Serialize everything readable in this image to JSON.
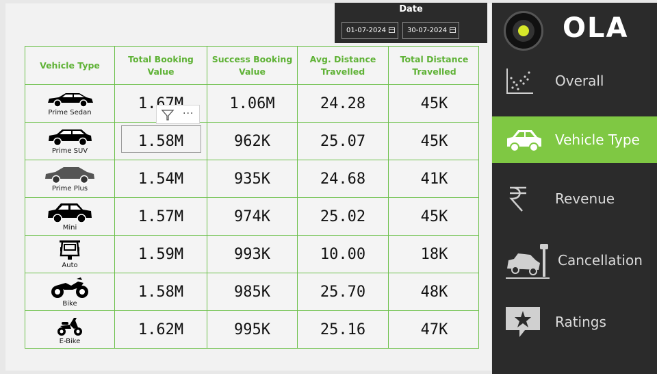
{
  "date_filter": {
    "title": "Date",
    "start": "01-07-2024",
    "end": "30-07-2024"
  },
  "table": {
    "headers": [
      "Vehicle Type",
      "Total Booking Value",
      "Success Booking Value",
      "Avg. Distance Travelled",
      "Total Distance Travelled"
    ],
    "rows": [
      {
        "vehicle": "Prime Sedan",
        "icon": "sedan-icon",
        "total_booking": "1.67M",
        "success_booking": "1.06M",
        "avg_distance": "24.28",
        "total_distance": "45K"
      },
      {
        "vehicle": "Prime SUV",
        "icon": "suv-icon",
        "total_booking": "1.58M",
        "success_booking": "962K",
        "avg_distance": "25.07",
        "total_distance": "45K"
      },
      {
        "vehicle": "Prime Plus",
        "icon": "prime-plus-icon",
        "total_booking": "1.54M",
        "success_booking": "935K",
        "avg_distance": "24.68",
        "total_distance": "41K"
      },
      {
        "vehicle": "Mini",
        "icon": "mini-car-icon",
        "total_booking": "1.57M",
        "success_booking": "974K",
        "avg_distance": "25.02",
        "total_distance": "45K"
      },
      {
        "vehicle": "Auto",
        "icon": "auto-rickshaw-icon",
        "total_booking": "1.59M",
        "success_booking": "993K",
        "avg_distance": "10.00",
        "total_distance": "18K"
      },
      {
        "vehicle": "Bike",
        "icon": "motorbike-icon",
        "total_booking": "1.58M",
        "success_booking": "985K",
        "avg_distance": "25.70",
        "total_distance": "48K"
      },
      {
        "vehicle": "E-Bike",
        "icon": "scooter-icon",
        "total_booking": "1.62M",
        "success_booking": "995K",
        "avg_distance": "25.16",
        "total_distance": "47K"
      }
    ]
  },
  "visual_toolbar": {
    "more_label": "···"
  },
  "sidebar": {
    "logo_text": "OLA",
    "accent_color": "#7fc843",
    "items": [
      {
        "label": "Overall",
        "icon": "scatter-chart-icon",
        "active": false
      },
      {
        "label": "Vehicle Type",
        "icon": "car-icon",
        "active": true
      },
      {
        "label": "Revenue",
        "icon": "rupee-icon",
        "active": false
      },
      {
        "label": "Cancellation",
        "icon": "car-crash-icon",
        "active": false
      },
      {
        "label": "Ratings",
        "icon": "star-chat-icon",
        "active": false
      }
    ]
  }
}
